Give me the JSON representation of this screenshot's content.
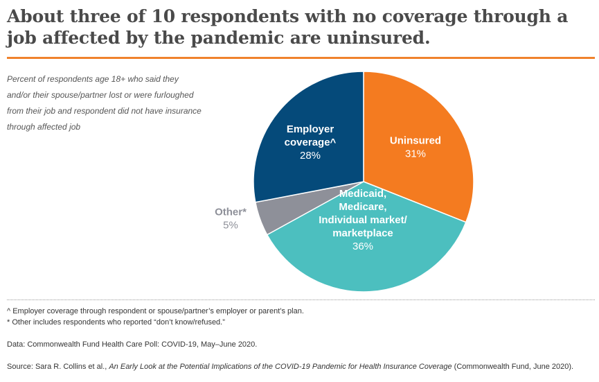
{
  "title": "About three of 10 respondents with no coverage through a job affected by the pandemic are uninsured.",
  "subtitle": "Percent of respondents age 18+ who said they and/or their spouse/partner lost or were furloughed from their job and respondent did not have insurance through affected job",
  "chart_data": {
    "type": "pie",
    "start_angle_deg": 0,
    "direction": "clockwise",
    "slices": [
      {
        "label_lines": [
          "Uninsured"
        ],
        "value_label": "31%",
        "value": 31,
        "color": "#f47b20",
        "label_color": "#ffffff"
      },
      {
        "label_lines": [
          "Medicaid,",
          "Medicare,",
          "Individual market/",
          "marketplace"
        ],
        "value_label": "36%",
        "value": 36,
        "color": "#4cbfbf",
        "label_color": "#ffffff"
      },
      {
        "label_lines": [
          "Other*"
        ],
        "value_label": "5%",
        "value": 5,
        "color": "#8e9099",
        "label_color": "#8e9099"
      },
      {
        "label_lines": [
          "Employer",
          "coverage^"
        ],
        "value_label": "28%",
        "value": 28,
        "color": "#054a7a",
        "label_color": "#ffffff"
      }
    ]
  },
  "notes": {
    "footnote1": "^ Employer coverage through respondent or spouse/partner’s employer or parent’s plan.",
    "footnote2": "* Other includes respondents who reported “don’t know/refused.”",
    "data_source": "Data: Commonwealth Fund Health Care Poll: COVID-19, May–June 2020.",
    "source_prefix": "Source: Sara R. Collins et al., ",
    "source_title": "An Early Look at the Potential Implications of the COVID-19 Pandemic for Health Insurance Coverage",
    "source_suffix": " (Commonwealth Fund, June 2020)."
  }
}
